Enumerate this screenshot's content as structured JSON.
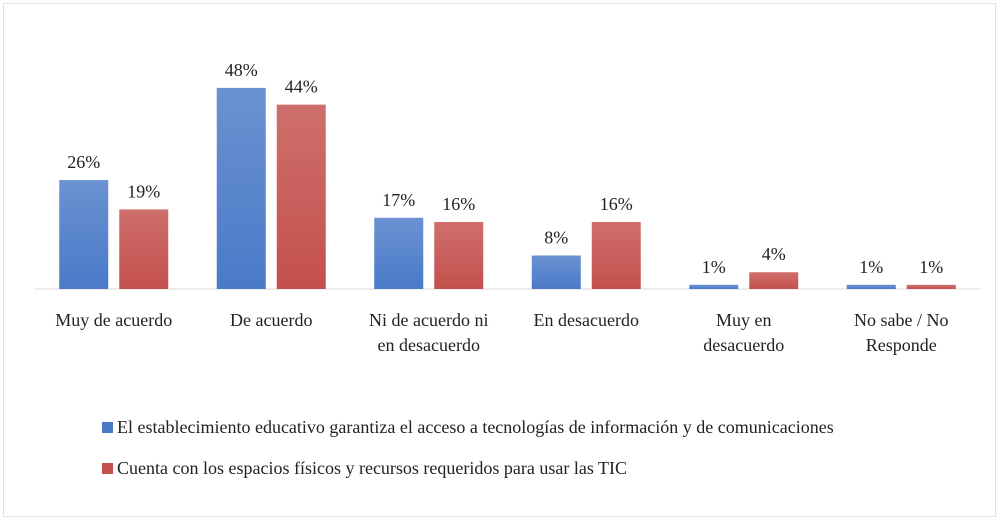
{
  "chart_data": {
    "type": "bar",
    "categories": [
      "Muy de acuerdo",
      "De acuerdo",
      "Ni de acuerdo ni en desacuerdo",
      "En desacuerdo",
      "Muy en desacuerdo",
      "No sabe / No Responde"
    ],
    "series": [
      {
        "name": "El establecimiento educativo garantiza el acceso a tecnologías de información y de comunicaciones",
        "color": "#4a7ac8",
        "values": [
          26,
          48,
          17,
          8,
          1,
          1
        ],
        "value_labels": [
          "26%",
          "48%",
          "17%",
          "8%",
          "1%",
          "1%"
        ]
      },
      {
        "name": "Cuenta con los espacios físicos y recursos requeridos para usar las TIC",
        "color": "#c4504d",
        "values": [
          19,
          44,
          16,
          16,
          4,
          1
        ],
        "value_labels": [
          "19%",
          "44%",
          "16%",
          "16%",
          "4%",
          "1%"
        ]
      }
    ],
    "legend": "bottom"
  }
}
